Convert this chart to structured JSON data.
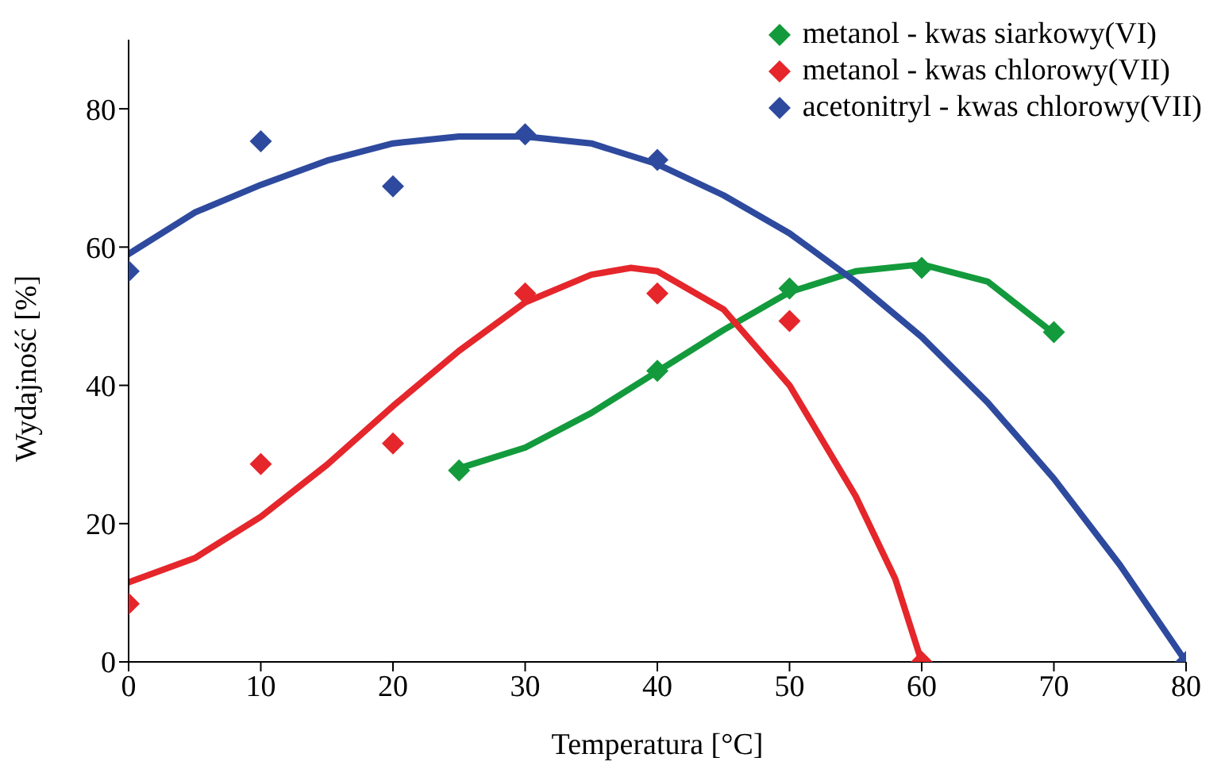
{
  "chart_data": {
    "type": "scatter",
    "xlabel": "Temperatura [°C]",
    "ylabel": "Wydajność [%]",
    "xlim": [
      0,
      80
    ],
    "xticks": [
      0,
      10,
      20,
      30,
      40,
      50,
      60,
      70,
      80
    ],
    "ylim": [
      0,
      90
    ],
    "yticks": [
      0,
      20,
      40,
      60,
      80
    ],
    "grid": false,
    "legend": "top right",
    "series": [
      {
        "name": "metanol - kwas siarkowy(VI)",
        "marker": "diamond",
        "color": "#139a3c",
        "x": [
          25,
          40,
          50,
          60,
          70
        ],
        "values": [
          27.7,
          42.1,
          54,
          57,
          47.7
        ]
      },
      {
        "name": "metanol - kwas chlorowy(VII)",
        "marker": "diamond",
        "color": "#e5262b",
        "x": [
          0,
          10,
          20,
          30,
          40,
          50,
          60
        ],
        "values": [
          8.4,
          28.6,
          31.6,
          53.3,
          53.3,
          49.3,
          0
        ]
      },
      {
        "name": "acetonitryl - kwas chlorowy(VII)",
        "marker": "diamond",
        "color": "#2e4a9e",
        "x": [
          0,
          10,
          20,
          30,
          40,
          80
        ],
        "values": [
          56.5,
          75.3,
          68.8,
          76.3,
          72.6,
          0
        ]
      },
      {
        "type": "line",
        "marker": "none",
        "line_style": "solid",
        "color": "#139a3c",
        "x": [
          25,
          30,
          35,
          40,
          45,
          50,
          55,
          60,
          65,
          70
        ],
        "values": [
          28,
          31,
          36,
          42,
          48,
          53.5,
          56.5,
          57.5,
          55,
          47.5
        ]
      },
      {
        "type": "line",
        "marker": "none",
        "line_style": "solid",
        "color": "#e5262b",
        "x": [
          0,
          5,
          10,
          15,
          20,
          25,
          30,
          35,
          38,
          40,
          45,
          50,
          55,
          58,
          60
        ],
        "values": [
          11.5,
          15,
          21,
          28.5,
          37,
          45,
          52,
          56,
          57,
          56.5,
          51,
          40,
          24,
          12,
          0
        ]
      },
      {
        "type": "line",
        "marker": "none",
        "line_style": "solid",
        "color": "#2e4a9e",
        "x": [
          0,
          5,
          10,
          15,
          20,
          25,
          30,
          35,
          40,
          45,
          50,
          55,
          60,
          65,
          70,
          75,
          80
        ],
        "values": [
          59,
          65,
          69,
          72.5,
          75,
          76,
          76,
          75,
          72,
          67.5,
          62,
          55,
          47,
          37.5,
          26.5,
          14,
          0
        ]
      }
    ]
  }
}
